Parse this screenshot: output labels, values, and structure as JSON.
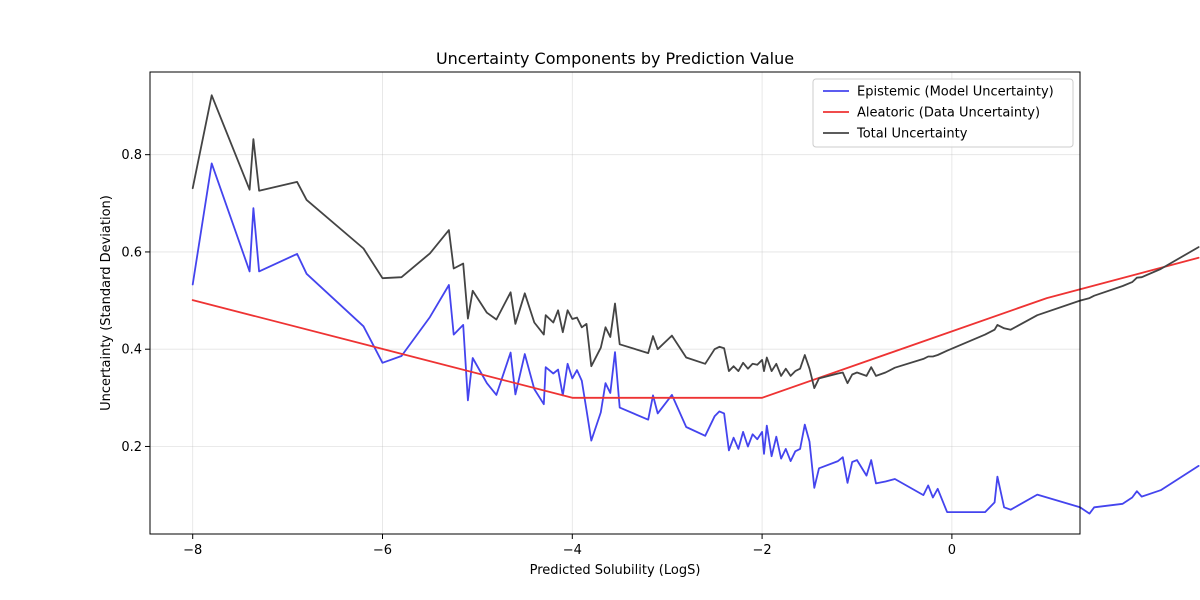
{
  "chart_data": {
    "type": "line",
    "title": "Uncertainty Components by Prediction Value",
    "xlabel": "Predicted Solubility (LogS)",
    "ylabel": "Uncertainty (Standard Deviation)",
    "xlim": [
      -8.45,
      1.35
    ],
    "ylim": [
      0.02,
      0.97
    ],
    "xticks": [
      -8,
      -6,
      -4,
      -2,
      0
    ],
    "yticks": [
      0.2,
      0.4,
      0.6,
      0.8
    ],
    "xtick_labels": [
      "−8",
      "−6",
      "−4",
      "−2",
      "0"
    ],
    "ytick_labels": [
      "0.2",
      "0.4",
      "0.6",
      "0.8"
    ],
    "grid": true,
    "legend_position": "top-right",
    "series": [
      {
        "name": "Epistemic (Model Uncertainty)",
        "color": "#4444ee",
        "points": [
          [
            -8.0,
            0.533
          ],
          [
            -7.8,
            0.782
          ],
          [
            -7.4,
            0.56
          ],
          [
            -7.36,
            0.69
          ],
          [
            -7.3,
            0.56
          ],
          [
            -6.9,
            0.596
          ],
          [
            -6.8,
            0.555
          ],
          [
            -6.2,
            0.447
          ],
          [
            -6.0,
            0.372
          ],
          [
            -5.8,
            0.386
          ],
          [
            -5.5,
            0.466
          ],
          [
            -5.3,
            0.532
          ],
          [
            -5.25,
            0.43
          ],
          [
            -5.15,
            0.45
          ],
          [
            -5.1,
            0.295
          ],
          [
            -5.05,
            0.382
          ],
          [
            -4.9,
            0.33
          ],
          [
            -4.8,
            0.306
          ],
          [
            -4.65,
            0.393
          ],
          [
            -4.6,
            0.307
          ],
          [
            -4.5,
            0.39
          ],
          [
            -4.4,
            0.318
          ],
          [
            -4.3,
            0.287
          ],
          [
            -4.28,
            0.363
          ],
          [
            -4.2,
            0.35
          ],
          [
            -4.15,
            0.358
          ],
          [
            -4.1,
            0.305
          ],
          [
            -4.05,
            0.37
          ],
          [
            -4.0,
            0.34
          ],
          [
            -3.95,
            0.357
          ],
          [
            -3.9,
            0.335
          ],
          [
            -3.85,
            0.275
          ],
          [
            -3.8,
            0.212
          ],
          [
            -3.7,
            0.27
          ],
          [
            -3.65,
            0.33
          ],
          [
            -3.6,
            0.31
          ],
          [
            -3.55,
            0.394
          ],
          [
            -3.5,
            0.28
          ],
          [
            -3.2,
            0.255
          ],
          [
            -3.15,
            0.305
          ],
          [
            -3.1,
            0.268
          ],
          [
            -2.95,
            0.306
          ],
          [
            -2.8,
            0.24
          ],
          [
            -2.6,
            0.222
          ],
          [
            -2.5,
            0.262
          ],
          [
            -2.45,
            0.272
          ],
          [
            -2.4,
            0.268
          ],
          [
            -2.35,
            0.192
          ],
          [
            -2.3,
            0.218
          ],
          [
            -2.25,
            0.195
          ],
          [
            -2.2,
            0.23
          ],
          [
            -2.15,
            0.2
          ],
          [
            -2.1,
            0.225
          ],
          [
            -2.05,
            0.215
          ],
          [
            -2.0,
            0.23
          ],
          [
            -1.98,
            0.185
          ],
          [
            -1.95,
            0.243
          ],
          [
            -1.9,
            0.18
          ],
          [
            -1.85,
            0.22
          ],
          [
            -1.8,
            0.175
          ],
          [
            -1.75,
            0.195
          ],
          [
            -1.7,
            0.17
          ],
          [
            -1.65,
            0.19
          ],
          [
            -1.6,
            0.195
          ],
          [
            -1.55,
            0.245
          ],
          [
            -1.5,
            0.21
          ],
          [
            -1.45,
            0.115
          ],
          [
            -1.4,
            0.155
          ],
          [
            -1.2,
            0.17
          ],
          [
            -1.15,
            0.178
          ],
          [
            -1.1,
            0.125
          ],
          [
            -1.05,
            0.168
          ],
          [
            -1.0,
            0.172
          ],
          [
            -0.9,
            0.14
          ],
          [
            -0.85,
            0.172
          ],
          [
            -0.8,
            0.124
          ],
          [
            -0.7,
            0.128
          ],
          [
            -0.6,
            0.133
          ],
          [
            -0.3,
            0.1
          ],
          [
            -0.25,
            0.12
          ],
          [
            -0.2,
            0.095
          ],
          [
            -0.15,
            0.113
          ],
          [
            -0.05,
            0.065
          ],
          [
            0.35,
            0.065
          ],
          [
            0.45,
            0.085
          ],
          [
            0.48,
            0.138
          ],
          [
            0.55,
            0.075
          ],
          [
            0.62,
            0.07
          ],
          [
            0.9,
            0.101
          ],
          [
            1.35,
            0.075
          ],
          [
            1.45,
            0.062
          ],
          [
            1.5,
            0.075
          ],
          [
            1.8,
            0.082
          ],
          [
            1.9,
            0.095
          ],
          [
            1.95,
            0.108
          ],
          [
            2.0,
            0.097
          ],
          [
            2.2,
            0.11
          ],
          [
            2.6,
            0.16
          ]
        ]
      },
      {
        "name": "Aleatoric (Data Uncertainty)",
        "color": "#ee3333",
        "points": [
          [
            -8.0,
            0.501
          ],
          [
            -4.0,
            0.3
          ],
          [
            -2.0,
            0.3
          ],
          [
            1.0,
            0.505
          ],
          [
            2.6,
            0.588
          ]
        ]
      },
      {
        "name": "Total Uncertainty",
        "color": "#444444",
        "points": [
          [
            -8.0,
            0.731
          ],
          [
            -7.8,
            0.922
          ],
          [
            -7.4,
            0.728
          ],
          [
            -7.36,
            0.832
          ],
          [
            -7.3,
            0.726
          ],
          [
            -6.9,
            0.744
          ],
          [
            -6.8,
            0.707
          ],
          [
            -6.2,
            0.607
          ],
          [
            -6.0,
            0.546
          ],
          [
            -5.8,
            0.548
          ],
          [
            -5.5,
            0.597
          ],
          [
            -5.3,
            0.645
          ],
          [
            -5.25,
            0.566
          ],
          [
            -5.15,
            0.576
          ],
          [
            -5.1,
            0.463
          ],
          [
            -5.05,
            0.52
          ],
          [
            -4.9,
            0.475
          ],
          [
            -4.8,
            0.461
          ],
          [
            -4.65,
            0.517
          ],
          [
            -4.6,
            0.452
          ],
          [
            -4.5,
            0.515
          ],
          [
            -4.4,
            0.455
          ],
          [
            -4.3,
            0.43
          ],
          [
            -4.28,
            0.47
          ],
          [
            -4.2,
            0.455
          ],
          [
            -4.15,
            0.48
          ],
          [
            -4.1,
            0.435
          ],
          [
            -4.05,
            0.48
          ],
          [
            -4.0,
            0.462
          ],
          [
            -3.95,
            0.465
          ],
          [
            -3.9,
            0.445
          ],
          [
            -3.85,
            0.452
          ],
          [
            -3.8,
            0.365
          ],
          [
            -3.7,
            0.403
          ],
          [
            -3.65,
            0.445
          ],
          [
            -3.6,
            0.425
          ],
          [
            -3.55,
            0.494
          ],
          [
            -3.5,
            0.41
          ],
          [
            -3.2,
            0.392
          ],
          [
            -3.15,
            0.427
          ],
          [
            -3.1,
            0.4
          ],
          [
            -2.95,
            0.428
          ],
          [
            -2.8,
            0.383
          ],
          [
            -2.6,
            0.37
          ],
          [
            -2.5,
            0.4
          ],
          [
            -2.45,
            0.405
          ],
          [
            -2.4,
            0.402
          ],
          [
            -2.35,
            0.355
          ],
          [
            -2.3,
            0.365
          ],
          [
            -2.25,
            0.355
          ],
          [
            -2.2,
            0.372
          ],
          [
            -2.15,
            0.36
          ],
          [
            -2.1,
            0.37
          ],
          [
            -2.05,
            0.368
          ],
          [
            -2.0,
            0.378
          ],
          [
            -1.98,
            0.355
          ],
          [
            -1.95,
            0.383
          ],
          [
            -1.9,
            0.355
          ],
          [
            -1.85,
            0.37
          ],
          [
            -1.8,
            0.345
          ],
          [
            -1.75,
            0.36
          ],
          [
            -1.7,
            0.345
          ],
          [
            -1.65,
            0.355
          ],
          [
            -1.6,
            0.36
          ],
          [
            -1.55,
            0.388
          ],
          [
            -1.5,
            0.36
          ],
          [
            -1.45,
            0.32
          ],
          [
            -1.4,
            0.34
          ],
          [
            -1.2,
            0.35
          ],
          [
            -1.15,
            0.352
          ],
          [
            -1.1,
            0.33
          ],
          [
            -1.05,
            0.348
          ],
          [
            -1.0,
            0.352
          ],
          [
            -0.9,
            0.345
          ],
          [
            -0.85,
            0.363
          ],
          [
            -0.8,
            0.345
          ],
          [
            -0.7,
            0.352
          ],
          [
            -0.6,
            0.362
          ],
          [
            -0.3,
            0.38
          ],
          [
            -0.25,
            0.385
          ],
          [
            -0.2,
            0.385
          ],
          [
            -0.15,
            0.388
          ],
          [
            -0.05,
            0.397
          ],
          [
            0.35,
            0.43
          ],
          [
            0.45,
            0.44
          ],
          [
            0.48,
            0.45
          ],
          [
            0.55,
            0.443
          ],
          [
            0.62,
            0.44
          ],
          [
            0.9,
            0.47
          ],
          [
            1.35,
            0.5
          ],
          [
            1.45,
            0.505
          ],
          [
            1.5,
            0.51
          ],
          [
            1.8,
            0.53
          ],
          [
            1.9,
            0.538
          ],
          [
            1.95,
            0.547
          ],
          [
            2.0,
            0.548
          ],
          [
            2.2,
            0.565
          ],
          [
            2.6,
            0.61
          ]
        ]
      }
    ]
  }
}
